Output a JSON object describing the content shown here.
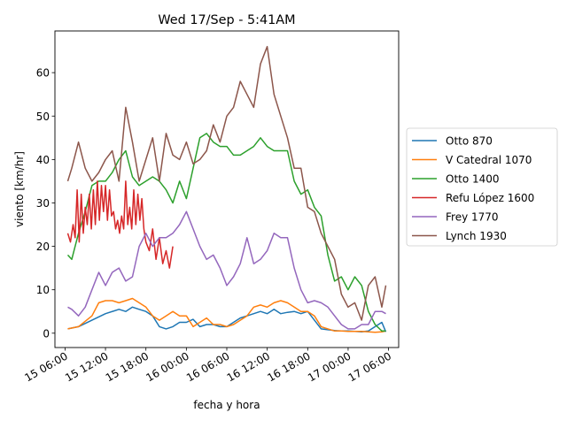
{
  "chart_data": {
    "type": "line",
    "title": "Wed 17/Sep - 5:41AM",
    "xlabel": "fecha y hora",
    "ylabel": "viento [km/hr]",
    "x_unit": "hours since 15 06:00",
    "xlim": [
      -1.5,
      49.5
    ],
    "ylim": [
      -3.3,
      69.6
    ],
    "xticks": [
      {
        "t": 0,
        "label": "15 06:00"
      },
      {
        "t": 6,
        "label": "15 12:00"
      },
      {
        "t": 12,
        "label": "15 18:00"
      },
      {
        "t": 18,
        "label": "16 00:00"
      },
      {
        "t": 24,
        "label": "16 06:00"
      },
      {
        "t": 30,
        "label": "16 12:00"
      },
      {
        "t": 36,
        "label": "16 18:00"
      },
      {
        "t": 42,
        "label": "17 00:00"
      },
      {
        "t": 48,
        "label": "17 06:00"
      }
    ],
    "yticks": [
      0,
      10,
      20,
      30,
      40,
      50,
      60
    ],
    "legend_position": "center-right",
    "series": [
      {
        "name": "Otto 870",
        "color": "#1f77b4",
        "x": [
          0.4,
          2,
          4,
          6,
          8,
          9,
          10,
          11,
          12,
          13,
          14,
          15,
          16,
          17,
          18,
          19,
          20,
          21,
          22,
          23,
          24,
          25,
          26,
          27,
          28,
          29,
          30,
          31,
          32,
          33,
          34,
          35,
          36,
          37,
          38,
          39,
          40,
          41,
          42,
          43,
          44,
          45,
          46,
          47,
          47.6
        ],
        "y": [
          1,
          1.5,
          3,
          4.5,
          5.5,
          5,
          6,
          5.5,
          5,
          4,
          1.5,
          1,
          1.5,
          2.5,
          2.5,
          3.2,
          1.5,
          2,
          2,
          1.5,
          1.5,
          2.5,
          3.5,
          4,
          4.5,
          5,
          4.5,
          5.5,
          4.5,
          4.8,
          5,
          4.5,
          5,
          3,
          1,
          0.8,
          0.6,
          0.5,
          0.5,
          0.4,
          0.3,
          0.5,
          1.5,
          2.5,
          0.3
        ]
      },
      {
        "name": "V Catedral 1070",
        "color": "#ff7f0e",
        "x": [
          0.4,
          2,
          4,
          5,
          6,
          7,
          8,
          9,
          10,
          11,
          12,
          13,
          14,
          15,
          16,
          17,
          18,
          19,
          20,
          21,
          22,
          23,
          24,
          25,
          26,
          27,
          28,
          29,
          30,
          31,
          32,
          33,
          34,
          35,
          36,
          37,
          38,
          39,
          40,
          41,
          42,
          43,
          44,
          45,
          46,
          47,
          47.6
        ],
        "y": [
          1,
          1.5,
          4,
          7,
          7.5,
          7.5,
          7,
          7.5,
          8,
          7,
          6,
          4,
          3,
          4,
          5,
          4,
          4,
          1.5,
          2.5,
          3.5,
          2,
          2,
          1.5,
          2,
          3,
          4,
          6,
          6.5,
          6,
          7,
          7.5,
          7,
          6,
          5,
          5,
          4,
          1.5,
          1,
          0.5,
          0.5,
          0.4,
          0.4,
          0.4,
          0.3,
          0.2,
          0.3,
          0.5
        ]
      },
      {
        "name": "Otto 1400",
        "color": "#2ca02c",
        "x": [
          0.4,
          1,
          2,
          3,
          4,
          5,
          6,
          7,
          8,
          9,
          10,
          11,
          12,
          13,
          14,
          15,
          16,
          17,
          18,
          19,
          20,
          21,
          22,
          23,
          24,
          25,
          26,
          27,
          28,
          29,
          30,
          31,
          32,
          33,
          34,
          35,
          36,
          37,
          38,
          39,
          40,
          41,
          42,
          43,
          44,
          45,
          46,
          47,
          47.6
        ],
        "y": [
          18,
          17,
          23,
          28,
          34,
          35,
          35,
          37,
          40,
          42,
          36,
          34,
          35,
          36,
          35,
          33,
          30,
          35,
          31,
          38,
          45,
          46,
          44,
          43,
          43,
          41,
          41,
          42,
          43,
          45,
          43,
          42,
          42,
          42,
          35,
          32,
          33,
          29,
          27,
          18,
          12,
          13,
          10,
          13,
          11,
          5,
          2,
          0.5,
          0.5
        ]
      },
      {
        "name": "Refu López 1600",
        "color": "#d62728",
        "x": [
          0.4,
          0.8,
          1.2,
          1.5,
          1.8,
          2.1,
          2.4,
          2.7,
          3,
          3.3,
          3.6,
          3.9,
          4.2,
          4.5,
          4.8,
          5.1,
          5.4,
          5.7,
          6,
          6.3,
          6.6,
          6.9,
          7.2,
          7.5,
          7.8,
          8.1,
          8.4,
          8.7,
          9,
          9.3,
          9.6,
          9.9,
          10.2,
          10.5,
          10.8,
          11.1,
          11.4,
          11.7,
          12,
          12.5,
          13,
          13.5,
          14,
          14.5,
          15,
          15.5,
          16
        ],
        "y": [
          23,
          21,
          25,
          22,
          33,
          21,
          32,
          23,
          29,
          25,
          32,
          24,
          33,
          25,
          35,
          26,
          34,
          28,
          34,
          26,
          33,
          27,
          28,
          24,
          26,
          23,
          27,
          24,
          35,
          25,
          29,
          24,
          33,
          25,
          32,
          26,
          31,
          24,
          21,
          19,
          24,
          17,
          22,
          16,
          19,
          15,
          20
        ]
      },
      {
        "name": "Frey 1770",
        "color": "#9467bd",
        "x": [
          0.4,
          1,
          2,
          3,
          4,
          5,
          6,
          7,
          8,
          9,
          10,
          11,
          12,
          13,
          14,
          15,
          16,
          17,
          18,
          19,
          20,
          21,
          22,
          23,
          24,
          25,
          26,
          27,
          28,
          29,
          30,
          31,
          32,
          33,
          34,
          35,
          36,
          37,
          38,
          39,
          40,
          41,
          42,
          43,
          44,
          45,
          46,
          47,
          47.6
        ],
        "y": [
          6,
          5.5,
          4,
          6,
          10,
          14,
          11,
          14,
          15,
          12,
          13,
          20,
          23,
          20,
          22,
          22,
          23,
          25,
          28,
          24,
          20,
          17,
          18,
          15,
          11,
          13,
          16,
          22,
          16,
          17,
          19,
          23,
          22,
          22,
          15,
          10,
          7,
          7.5,
          7,
          6,
          4,
          2,
          1,
          1,
          2,
          2,
          5,
          5,
          4.5
        ]
      },
      {
        "name": "Lynch 1930",
        "color": "#8c564b",
        "x": [
          0.4,
          1,
          2,
          3,
          4,
          5,
          6,
          7,
          8,
          9,
          10,
          11,
          12,
          13,
          14,
          15,
          16,
          17,
          18,
          19,
          20,
          21,
          22,
          23,
          24,
          25,
          26,
          27,
          28,
          29,
          30,
          31,
          32,
          33,
          34,
          35,
          36,
          37,
          38,
          39,
          40,
          41,
          42,
          43,
          44,
          45,
          46,
          47,
          47.6
        ],
        "y": [
          35,
          38,
          44,
          38,
          35,
          37,
          40,
          42,
          35,
          52,
          44,
          35,
          40,
          45,
          35,
          46,
          41,
          40,
          44,
          39,
          40,
          42,
          48,
          44,
          50,
          52,
          58,
          55,
          52,
          62,
          66,
          55,
          50,
          45,
          38,
          38,
          29,
          28,
          23,
          20,
          17,
          9,
          6,
          7,
          3,
          11,
          13,
          6,
          11
        ]
      }
    ]
  }
}
